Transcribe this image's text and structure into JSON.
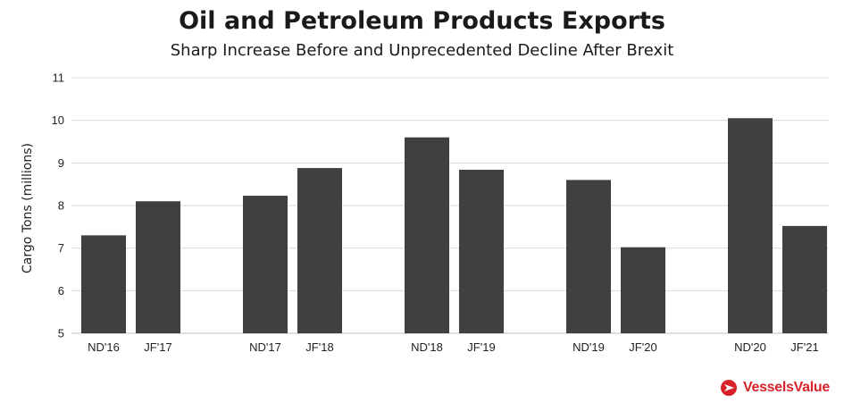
{
  "chart_data": {
    "type": "bar",
    "title": "Oil and Petroleum Products Exports",
    "subtitle": "Sharp Increase Before and Unprecedented Decline After Brexit",
    "xlabel": "",
    "ylabel": "Cargo Tons (millions)",
    "ylim": [
      5,
      11
    ],
    "yticks": [
      5,
      6,
      7,
      8,
      9,
      10,
      11
    ],
    "grid": true,
    "categories": [
      "ND'16",
      "JF'17",
      "ND'17",
      "JF'18",
      "ND'18",
      "JF'19",
      "ND'19",
      "JF'20",
      "ND'20",
      "JF'21"
    ],
    "values": [
      7.3,
      8.1,
      8.23,
      8.88,
      9.6,
      8.84,
      8.6,
      7.02,
      10.05,
      7.52
    ],
    "bar_color": "#404040"
  },
  "branding": {
    "logo_name": "VesselsValue",
    "logo_color": "#d8232a"
  }
}
